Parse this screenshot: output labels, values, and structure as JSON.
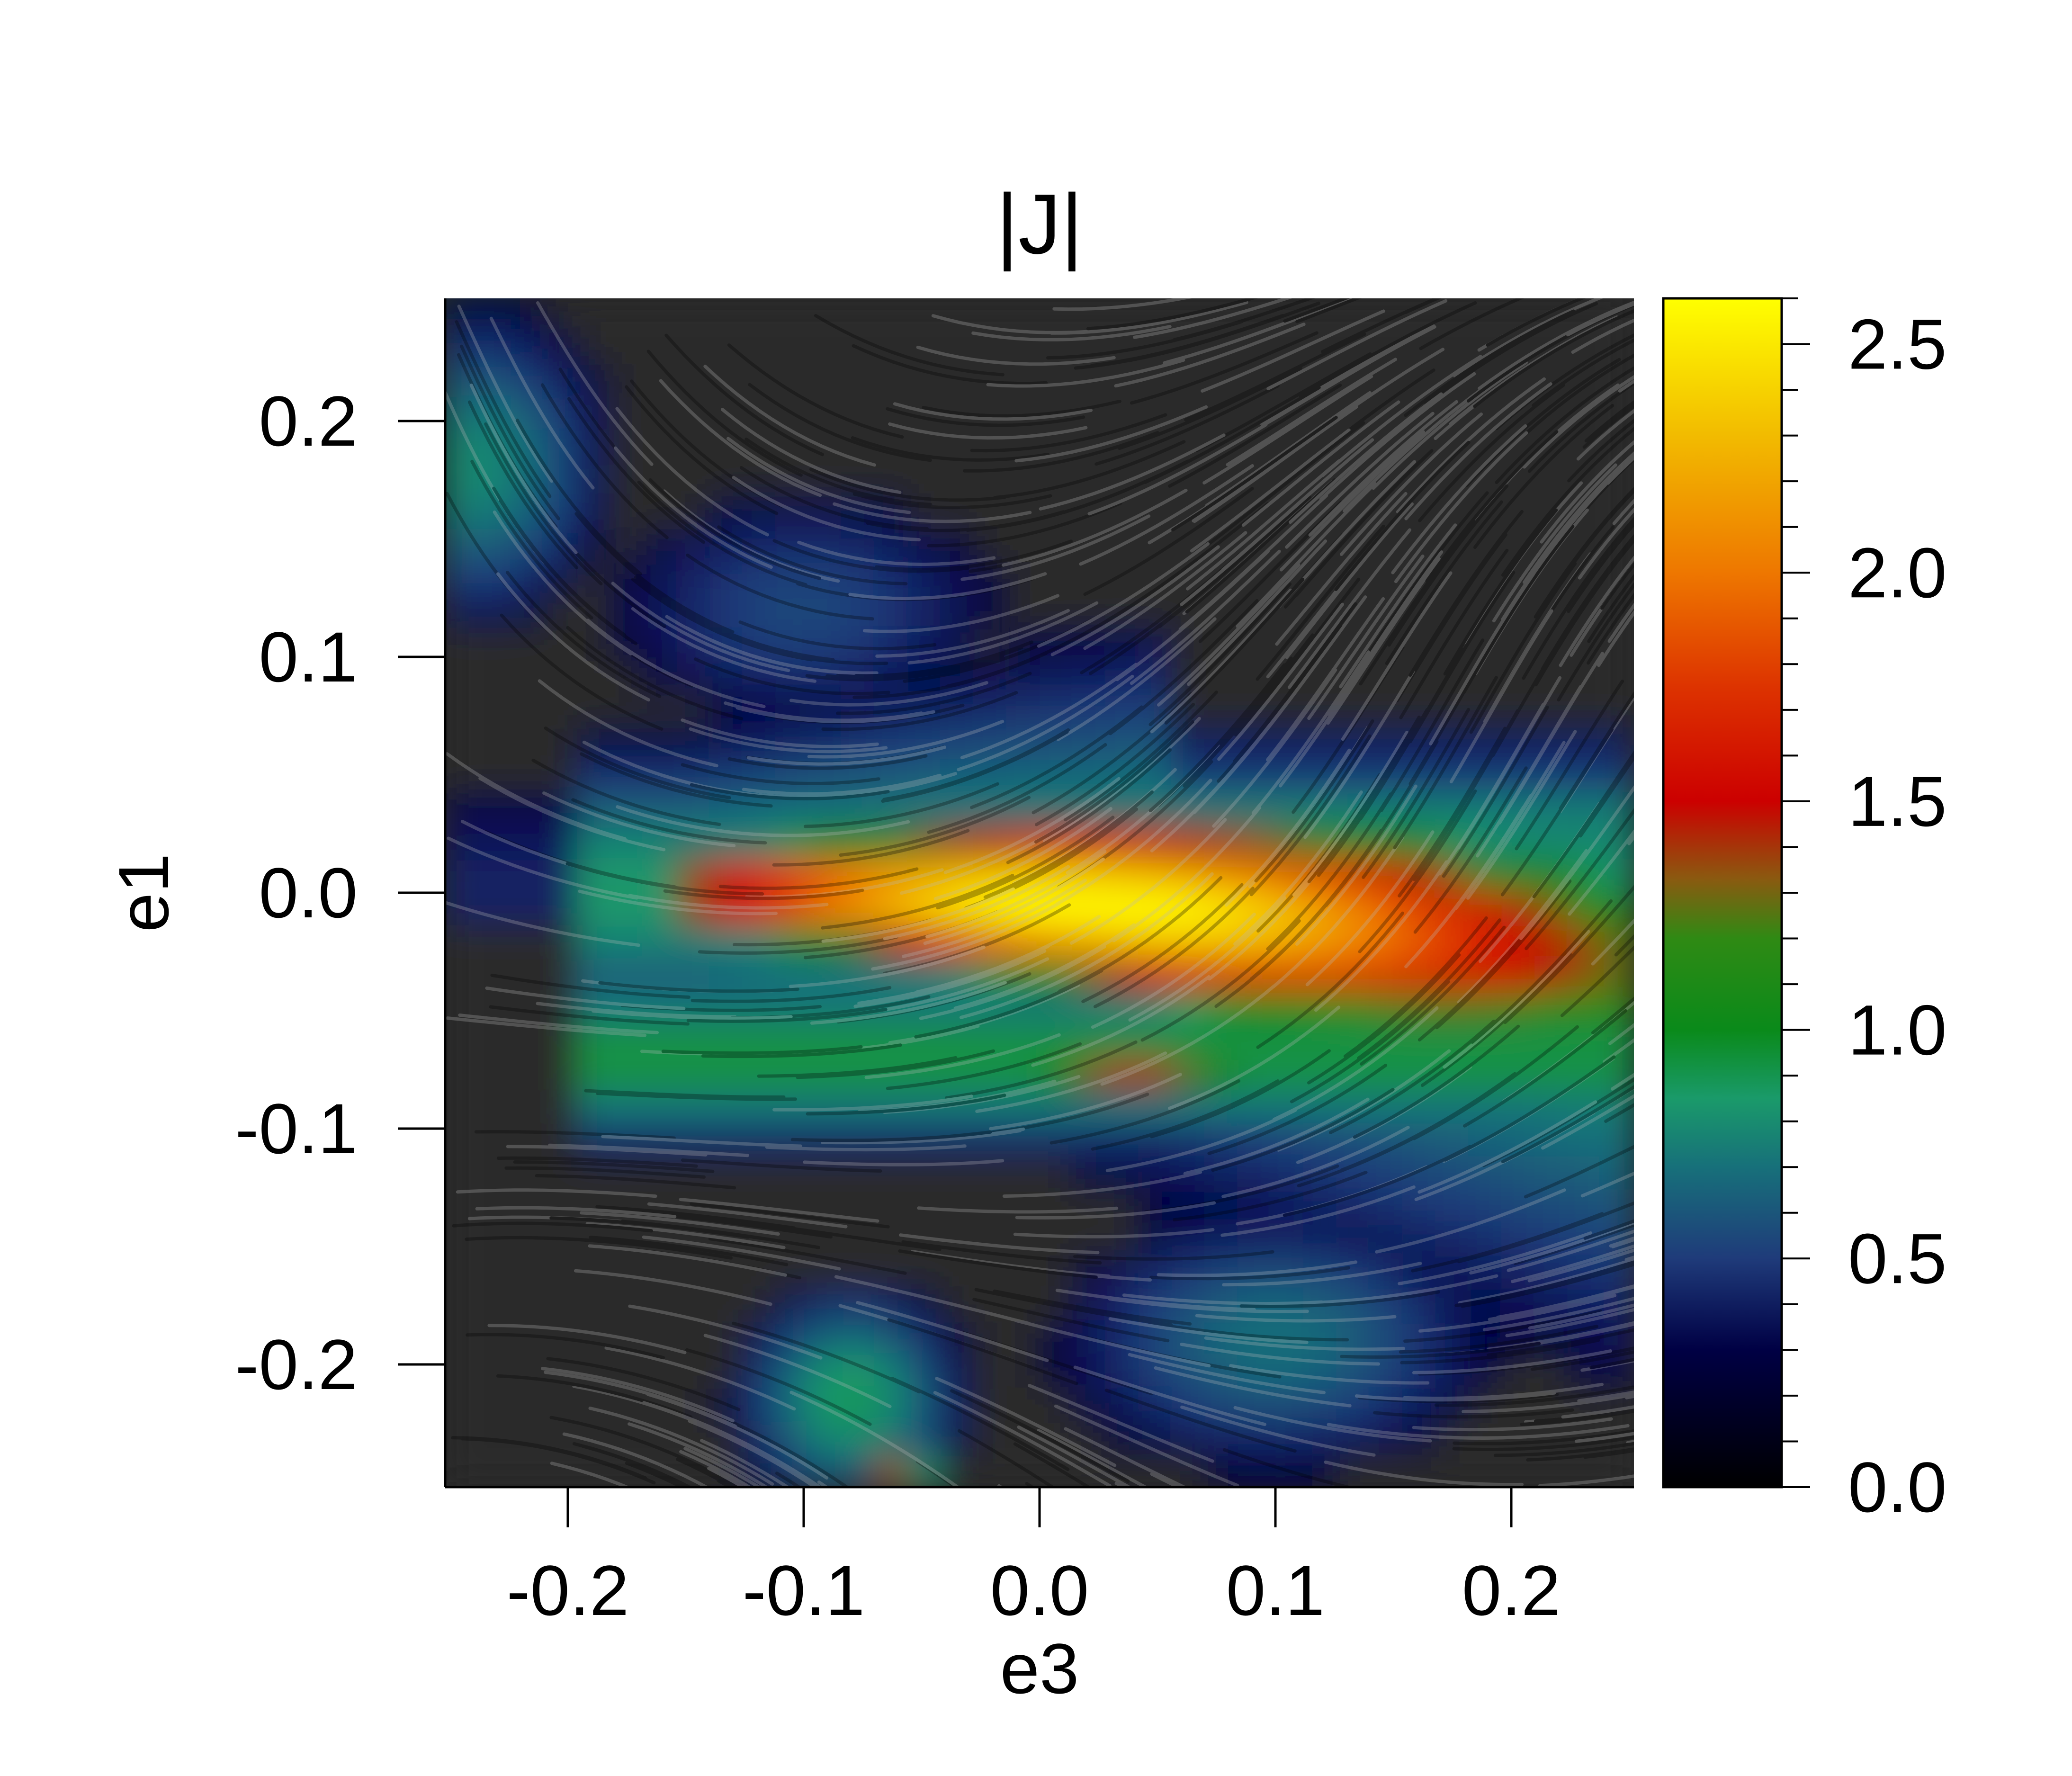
{
  "chart_data": {
    "type": "heatmap",
    "title": "|J|",
    "xlabel": "e3",
    "ylabel": "e1",
    "xlim": [
      -0.252,
      0.252
    ],
    "ylim": [
      -0.252,
      0.252
    ],
    "x_ticks": [
      "-0.2",
      "-0.1",
      "0.0",
      "0.1",
      "0.2"
    ],
    "x_tick_values": [
      -0.2,
      -0.1,
      0.0,
      0.1,
      0.2
    ],
    "y_ticks": [
      "-0.2",
      "-0.1",
      "0.0",
      "0.1",
      "0.2"
    ],
    "y_tick_values": [
      -0.2,
      -0.1,
      0.0,
      0.1,
      0.2
    ],
    "colorbar": {
      "range": [
        0.0,
        2.6
      ],
      "ticks": [
        "0.0",
        "0.5",
        "1.0",
        "1.5",
        "2.0",
        "2.5"
      ],
      "tick_values": [
        0.0,
        0.5,
        1.0,
        1.5,
        2.0,
        2.5
      ],
      "minor_step": 0.1,
      "colormap_stops": [
        {
          "value": 0.0,
          "color": "#000000"
        },
        {
          "value": 0.3,
          "color": "#000044"
        },
        {
          "value": 0.5,
          "color": "#1f3b7a"
        },
        {
          "value": 0.7,
          "color": "#17707a"
        },
        {
          "value": 0.85,
          "color": "#1a9a6a"
        },
        {
          "value": 1.0,
          "color": "#0a8a1a"
        },
        {
          "value": 1.2,
          "color": "#2f8a14"
        },
        {
          "value": 1.33,
          "color": "#8a5a10"
        },
        {
          "value": 1.5,
          "color": "#cc0000"
        },
        {
          "value": 1.75,
          "color": "#dd3300"
        },
        {
          "value": 2.0,
          "color": "#ee7700"
        },
        {
          "value": 2.3,
          "color": "#f2bb00"
        },
        {
          "value": 2.6,
          "color": "#ffff00"
        }
      ]
    },
    "features": [
      {
        "name": "main current sheet",
        "e3_range": [
          -0.15,
          0.25
        ],
        "e1_center": 0.0,
        "peak": 2.5,
        "peak_e3": 0.0
      },
      {
        "name": "lower ridge",
        "e3_center": 0.04,
        "e1_center": -0.075,
        "peak": 1.5
      },
      {
        "name": "lower-left vortex",
        "e3_center": -0.1,
        "e1_center": -0.215,
        "peak": 0.9
      },
      {
        "name": "bottom spot",
        "e3_center": -0.06,
        "e1_center": -0.245,
        "peak": 1.4
      },
      {
        "name": "upper-left arc",
        "e3_center": -0.24,
        "e1_center": 0.18,
        "peak": 0.8
      }
    ]
  }
}
